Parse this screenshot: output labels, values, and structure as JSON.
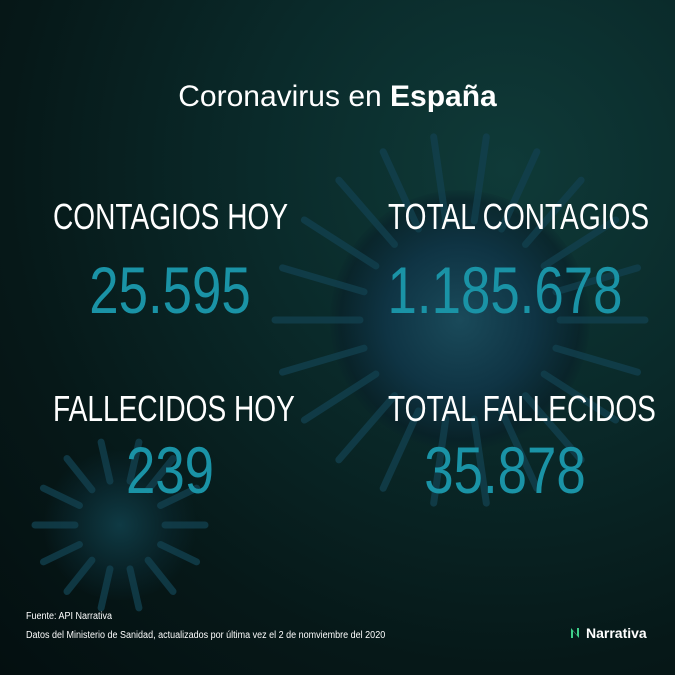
{
  "title": {
    "prefix": "Coronavirus en ",
    "bold": "España"
  },
  "stats": [
    {
      "label": "CONTAGIOS HOY",
      "value": "25.595"
    },
    {
      "label": "TOTAL CONTAGIOS",
      "value": "1.185.678"
    },
    {
      "label": "FALLECIDOS HOY",
      "value": "239"
    },
    {
      "label": "TOTAL FALLECIDOS",
      "value": "35.878"
    }
  ],
  "footer": {
    "source": "Fuente: API Narrativa",
    "note": "Datos del Ministerio de Sanidad, actualizados por última vez el  2 de nomviembre del 2020"
  },
  "logo": {
    "text": "Narrativa",
    "icon": "narrativa-n-logo-icon"
  },
  "colors": {
    "number": "#1a93a6",
    "text": "#ffffff",
    "background": "#061818"
  }
}
